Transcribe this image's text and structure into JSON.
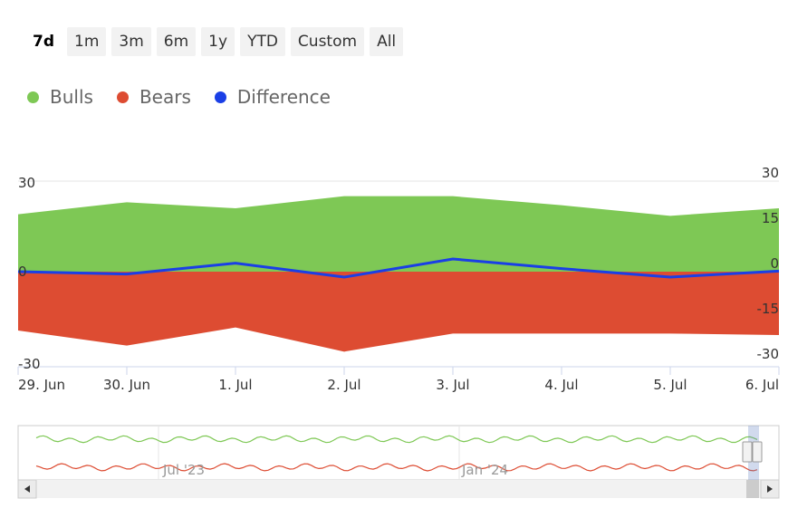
{
  "range_selector": {
    "buttons": [
      "7d",
      "1m",
      "3m",
      "6m",
      "1y",
      "YTD",
      "Custom",
      "All"
    ],
    "selected": "7d"
  },
  "legend": [
    {
      "name": "Bulls",
      "color": "#7ec855"
    },
    {
      "name": "Bears",
      "color": "#dd4c32"
    },
    {
      "name": "Difference",
      "color": "#1a3fe6"
    }
  ],
  "chart_data": {
    "type": "area",
    "categories": [
      "29. Jun",
      "30. Jun",
      "1. Jul",
      "2. Jul",
      "3. Jul",
      "4. Jul",
      "5. Jul",
      "6. Jul"
    ],
    "series": [
      {
        "name": "Bulls",
        "values": [
          19,
          23,
          21,
          25,
          25,
          22,
          18.5,
          21
        ]
      },
      {
        "name": "Bears",
        "values": [
          -19.5,
          -24.5,
          -18.5,
          -26.5,
          -20.5,
          -20.5,
          -20.5,
          -21
        ]
      },
      {
        "name": "Difference",
        "values": [
          0,
          -0.8,
          2.8,
          -1.8,
          4.2,
          1,
          -1.8,
          0.2
        ]
      }
    ],
    "left_axis": {
      "ticks": [
        "30",
        "0",
        "-30"
      ],
      "ylim": [
        -30,
        30
      ]
    },
    "right_axis": {
      "ticks": [
        "30",
        "15",
        "0",
        "-15",
        "-30"
      ],
      "ylim": [
        -30,
        30
      ]
    },
    "navigator": {
      "labels": [
        "Jul '23",
        "Jan '24"
      ]
    }
  }
}
